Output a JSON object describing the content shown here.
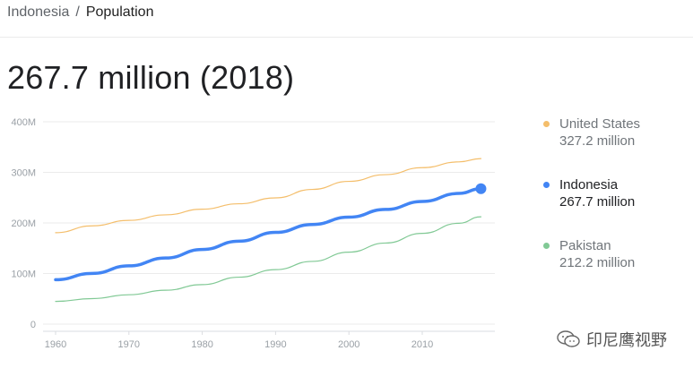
{
  "breadcrumb": {
    "country": "Indonesia",
    "separator": "/",
    "metric": "Population"
  },
  "headline": "267.7 million (2018)",
  "chart_data": {
    "type": "line",
    "x_ticks": [
      1960,
      1970,
      1980,
      1990,
      2000,
      2010
    ],
    "y_ticks": [
      0,
      100,
      200,
      300,
      400
    ],
    "y_tick_labels": [
      "0",
      "100M",
      "200M",
      "300M",
      "400M"
    ],
    "xlim": [
      1960,
      2018
    ],
    "ylim": [
      0,
      400
    ],
    "grid": true,
    "legend_position": "right",
    "series": [
      {
        "name": "United States",
        "value_label": "327.2 million",
        "color": "#f4be6b",
        "highlight": false,
        "x": [
          1960,
          1965,
          1970,
          1975,
          1980,
          1985,
          1990,
          1995,
          2000,
          2005,
          2010,
          2015,
          2018
        ],
        "y": [
          180.7,
          194.3,
          205.1,
          216.0,
          227.2,
          237.9,
          249.6,
          266.3,
          282.2,
          295.5,
          309.3,
          320.7,
          327.2
        ]
      },
      {
        "name": "Indonesia",
        "value_label": "267.7 million",
        "color": "#4285f4",
        "highlight": true,
        "x": [
          1960,
          1965,
          1970,
          1975,
          1980,
          1985,
          1990,
          1995,
          2000,
          2005,
          2010,
          2015,
          2018
        ],
        "y": [
          87.8,
          100.3,
          115.2,
          130.7,
          147.5,
          164.0,
          181.4,
          196.9,
          211.5,
          226.7,
          242.5,
          258.4,
          267.7
        ]
      },
      {
        "name": "Pakistan",
        "value_label": "212.2 million",
        "color": "#81c995",
        "highlight": false,
        "x": [
          1960,
          1965,
          1970,
          1975,
          1980,
          1985,
          1990,
          1995,
          2000,
          2005,
          2010,
          2015,
          2018
        ],
        "y": [
          44.9,
          50.5,
          58.1,
          67.0,
          78.1,
          92.8,
          107.7,
          124.0,
          142.3,
          160.3,
          179.4,
          199.4,
          212.2
        ]
      }
    ]
  },
  "watermark": {
    "text": "印尼鹰视野",
    "icon": "wechat-icon"
  }
}
